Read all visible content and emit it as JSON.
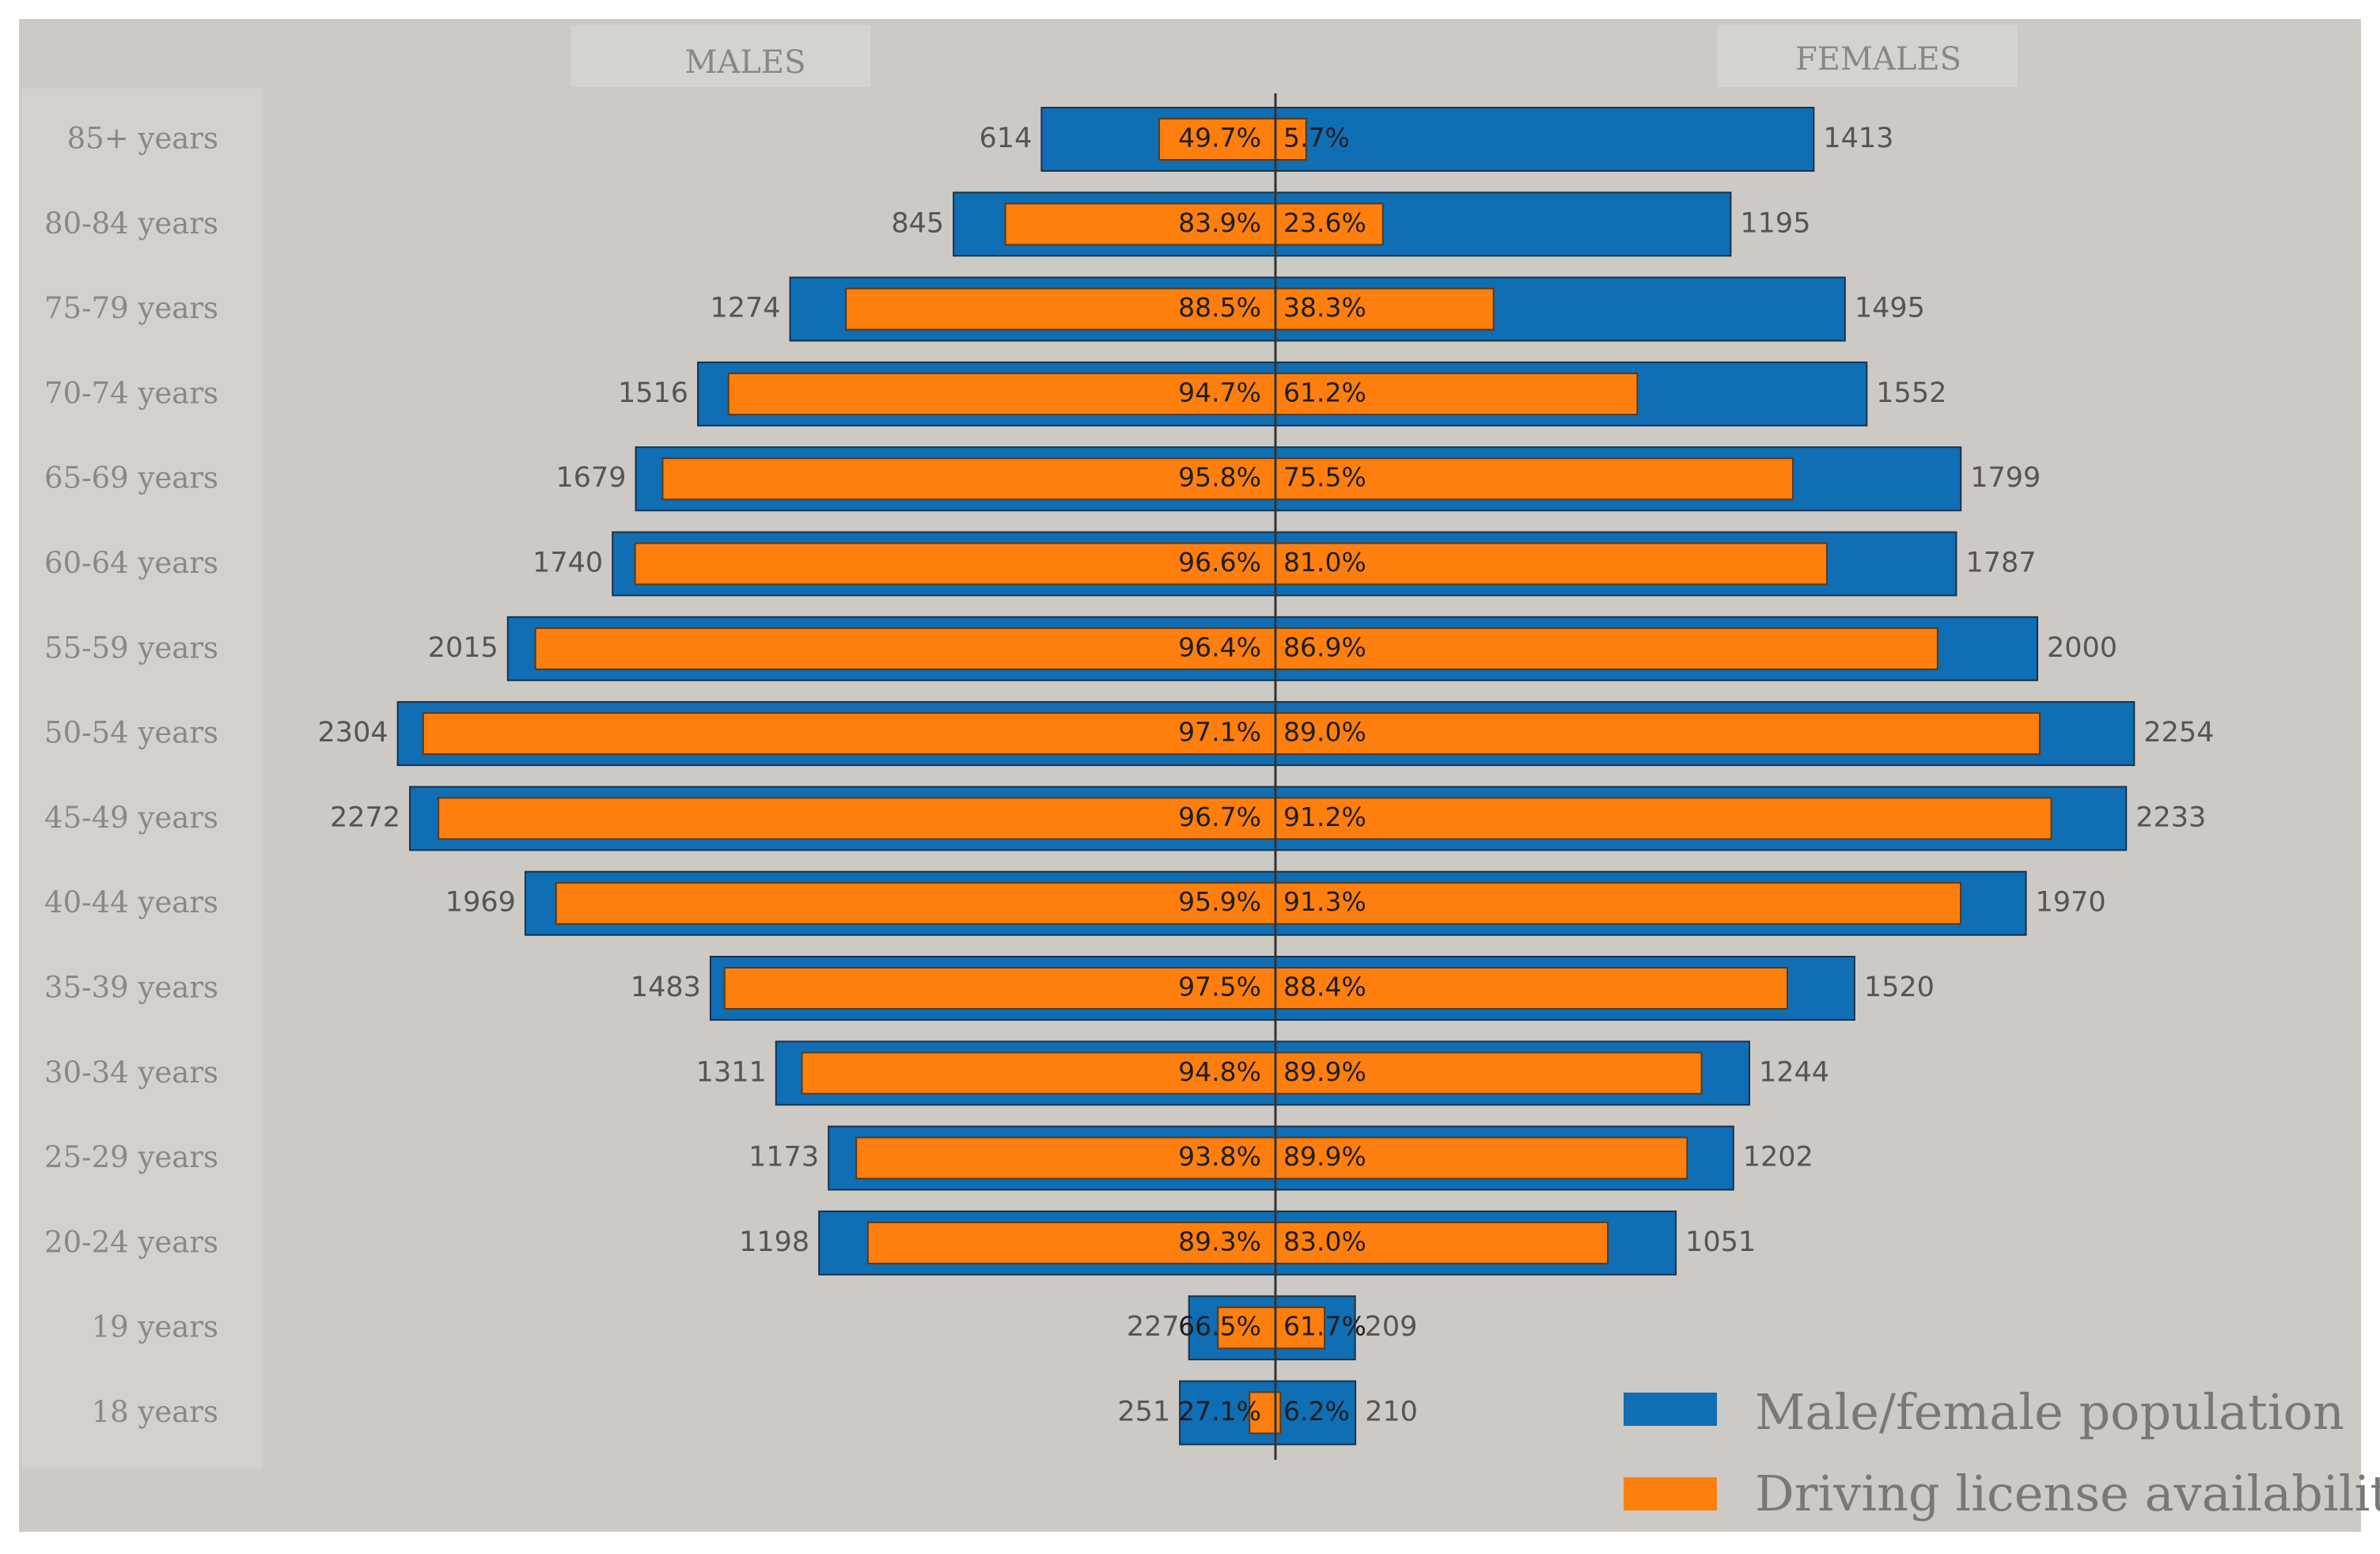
{
  "chart_data": {
    "type": "bar",
    "orientation": "horizontal",
    "layout": "population-pyramid",
    "panels": {
      "left": "MALES",
      "right": "FEMALES"
    },
    "categories": [
      "85+ years",
      "80-84 years",
      "75-79 years",
      "70-74 years",
      "65-69 years",
      "60-64 years",
      "55-59 years",
      "50-54 years",
      "45-49 years",
      "40-44 years",
      "35-39 years",
      "30-34 years",
      "25-29 years",
      "20-24 years",
      "19 years",
      "18 years"
    ],
    "males": {
      "population": [
        614,
        845,
        1274,
        1516,
        1679,
        1740,
        2015,
        2304,
        2272,
        1969,
        1483,
        1311,
        1173,
        1198,
        227,
        251
      ],
      "license_pct": [
        49.7,
        83.9,
        88.5,
        94.7,
        95.8,
        96.6,
        96.4,
        97.1,
        96.7,
        95.9,
        97.5,
        94.8,
        93.8,
        89.3,
        66.5,
        27.1
      ]
    },
    "females": {
      "population": [
        1413,
        1195,
        1495,
        1552,
        1799,
        1787,
        2000,
        2254,
        2233,
        1970,
        1520,
        1244,
        1202,
        1051,
        209,
        210
      ],
      "license_pct": [
        5.7,
        23.6,
        38.3,
        61.2,
        75.5,
        81.0,
        86.9,
        89.0,
        91.2,
        91.3,
        88.4,
        89.9,
        89.9,
        83.0,
        61.7,
        6.2
      ]
    },
    "legend": [
      {
        "label": "Male/female population",
        "color": "#0f6eb4"
      },
      {
        "label": "Driving license availability",
        "color": "#ff7f0e"
      }
    ],
    "legend_position": "bottom-right",
    "grid": false,
    "colors": {
      "background": "#cdc9c5",
      "population": "#0f6eb4",
      "license": "#ff7f0e"
    }
  }
}
